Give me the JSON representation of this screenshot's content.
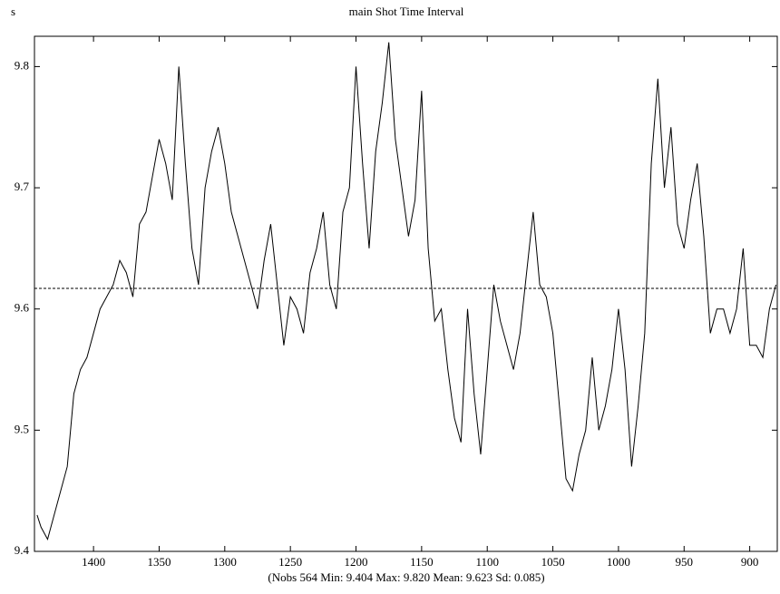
{
  "chart_data": {
    "type": "line",
    "title": "main Shot Time Interval",
    "y_label": "s",
    "footer": "(Nobs 564 Min: 9.404 Max: 9.820 Mean: 9.623 Sd: 0.085)",
    "x": [
      1443,
      1440,
      1435,
      1430,
      1425,
      1420,
      1415,
      1410,
      1405,
      1400,
      1395,
      1390,
      1385,
      1380,
      1375,
      1370,
      1365,
      1360,
      1355,
      1350,
      1345,
      1340,
      1335,
      1330,
      1325,
      1320,
      1315,
      1310,
      1305,
      1300,
      1295,
      1290,
      1285,
      1280,
      1275,
      1270,
      1265,
      1260,
      1255,
      1250,
      1245,
      1240,
      1235,
      1230,
      1225,
      1220,
      1215,
      1210,
      1205,
      1200,
      1195,
      1190,
      1185,
      1180,
      1175,
      1170,
      1165,
      1160,
      1155,
      1150,
      1145,
      1140,
      1135,
      1130,
      1125,
      1120,
      1115,
      1110,
      1105,
      1100,
      1095,
      1090,
      1085,
      1080,
      1075,
      1070,
      1065,
      1060,
      1055,
      1050,
      1045,
      1040,
      1035,
      1030,
      1025,
      1020,
      1015,
      1010,
      1005,
      1000,
      995,
      990,
      985,
      980,
      975,
      970,
      965,
      960,
      955,
      950,
      945,
      940,
      935,
      930,
      925,
      920,
      915,
      910,
      905,
      900,
      895,
      890,
      885,
      880
    ],
    "values": [
      9.43,
      9.42,
      9.41,
      9.43,
      9.45,
      9.47,
      9.53,
      9.55,
      9.56,
      9.58,
      9.6,
      9.61,
      9.62,
      9.64,
      9.63,
      9.61,
      9.67,
      9.68,
      9.71,
      9.74,
      9.72,
      9.69,
      9.8,
      9.72,
      9.65,
      9.62,
      9.7,
      9.73,
      9.75,
      9.72,
      9.68,
      9.66,
      9.64,
      9.62,
      9.6,
      9.64,
      9.67,
      9.62,
      9.57,
      9.61,
      9.6,
      9.58,
      9.63,
      9.65,
      9.68,
      9.62,
      9.6,
      9.68,
      9.7,
      9.8,
      9.72,
      9.65,
      9.73,
      9.77,
      9.82,
      9.74,
      9.7,
      9.66,
      9.69,
      9.78,
      9.65,
      9.59,
      9.6,
      9.55,
      9.51,
      9.49,
      9.6,
      9.53,
      9.48,
      9.55,
      9.62,
      9.59,
      9.57,
      9.55,
      9.58,
      9.63,
      9.68,
      9.62,
      9.61,
      9.58,
      9.52,
      9.46,
      9.45,
      9.48,
      9.5,
      9.56,
      9.5,
      9.52,
      9.55,
      9.6,
      9.55,
      9.47,
      9.52,
      9.58,
      9.72,
      9.79,
      9.7,
      9.75,
      9.67,
      9.65,
      9.69,
      9.72,
      9.66,
      9.58,
      9.6,
      9.6,
      9.58,
      9.6,
      9.65,
      9.57,
      9.57,
      9.56,
      9.6,
      9.62
    ],
    "color": "#000000",
    "reference_line": 9.617,
    "xlim": [
      1445,
      879
    ],
    "ylim": [
      9.4,
      9.825
    ],
    "xticks": [
      1400,
      1350,
      1300,
      1250,
      1200,
      1150,
      1100,
      1050,
      1000,
      950,
      900
    ],
    "yticks": [
      9.4,
      9.5,
      9.6,
      9.7,
      9.8
    ]
  }
}
